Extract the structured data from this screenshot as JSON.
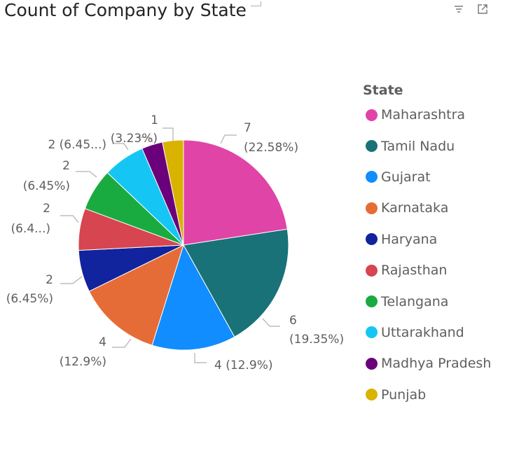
{
  "header": {
    "title": "Count of Company by State",
    "filter_icon": "filter-icon",
    "focus_icon": "focus-mode-icon"
  },
  "chart_data": {
    "type": "pie",
    "title": "Count of Company by State",
    "legend_title": "State",
    "legend_position": "right",
    "slices": [
      {
        "label": "Maharashtra",
        "value": 7,
        "percent": "22.58%",
        "color": "#E044A7",
        "line1": "7",
        "line2": "(22.58%)"
      },
      {
        "label": "Tamil Nadu",
        "value": 6,
        "percent": "19.35%",
        "color": "#197278",
        "line1": "6",
        "line2": "(19.35%)"
      },
      {
        "label": "Gujarat",
        "value": 4,
        "percent": "12.9%",
        "color": "#118DFF",
        "line1": "4 (12.9%)",
        "line2": ""
      },
      {
        "label": "Karnataka",
        "value": 4,
        "percent": "12.9%",
        "color": "#E66C37",
        "line1": "4",
        "line2": "(12.9%)"
      },
      {
        "label": "Haryana",
        "value": 2,
        "percent": "6.45%",
        "color": "#12239E",
        "line1": "2",
        "line2": "(6.45%)"
      },
      {
        "label": "Rajasthan",
        "value": 2,
        "percent": "6.45%",
        "color": "#D64550",
        "line1": "2",
        "line2": "(6.4...)"
      },
      {
        "label": "Telangana",
        "value": 2,
        "percent": "6.45%",
        "color": "#1AAB40",
        "line1": "2",
        "line2": "(6.45%)"
      },
      {
        "label": "Uttarakhand",
        "value": 2,
        "percent": "6.45%",
        "color": "#15C6F4",
        "line1": "2 (6.45...)",
        "line2": ""
      },
      {
        "label": "Madhya Pradesh",
        "value": 1,
        "percent": "3.23%",
        "color": "#6B007B",
        "line1": "",
        "line2": "(3.23%)"
      },
      {
        "label": "Punjab",
        "value": 1,
        "percent": "3.23%",
        "color": "#D9B300",
        "line1": "1",
        "line2": ""
      }
    ]
  }
}
